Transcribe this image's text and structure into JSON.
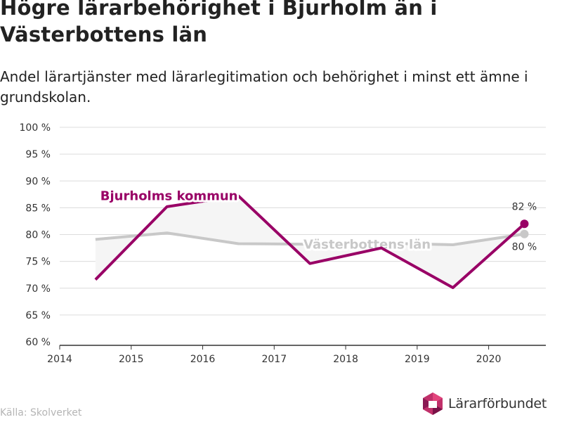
{
  "title": "Högre lärarbehörighet i Bjurholm än i Västerbottens län",
  "subtitle": "Andel lärartjänster med lärarlegitimation och behörighet i minst ett ämne i grundskolan.",
  "source": "Källa: Skolverket",
  "brand": "Lärarförbundet",
  "colors": {
    "kommun": "#990066",
    "lan": "#c8c8c8",
    "fill": "#f5f5f5",
    "grid": "#dcdcdc",
    "text": "#222222"
  },
  "chart_data": {
    "type": "line",
    "x_ticks": [
      "2014",
      "2015",
      "2016",
      "2017",
      "2018",
      "2019",
      "2020"
    ],
    "y_ticks": [
      "60 %",
      "65 %",
      "70 %",
      "75 %",
      "80 %",
      "85 %",
      "90 %",
      "95 %",
      "100 %"
    ],
    "ylim": [
      60,
      100
    ],
    "xlim": [
      2014,
      2020.8
    ],
    "series": [
      {
        "name": "Bjurholms kommun",
        "x": [
          2014.5,
          2015.5,
          2016.5,
          2017.5,
          2018.5,
          2019.5,
          2020.5
        ],
        "values": [
          71.6,
          85.2,
          87.2,
          74.6,
          77.5,
          70.1,
          82.0
        ],
        "end_label": "82 %"
      },
      {
        "name": "Västerbottens län",
        "x": [
          2014.5,
          2015.5,
          2016.5,
          2017.5,
          2018.5,
          2019.5,
          2020.5
        ],
        "values": [
          79.1,
          80.3,
          78.3,
          78.2,
          78.4,
          78.1,
          80.1
        ],
        "end_label": "80 %"
      }
    ]
  }
}
